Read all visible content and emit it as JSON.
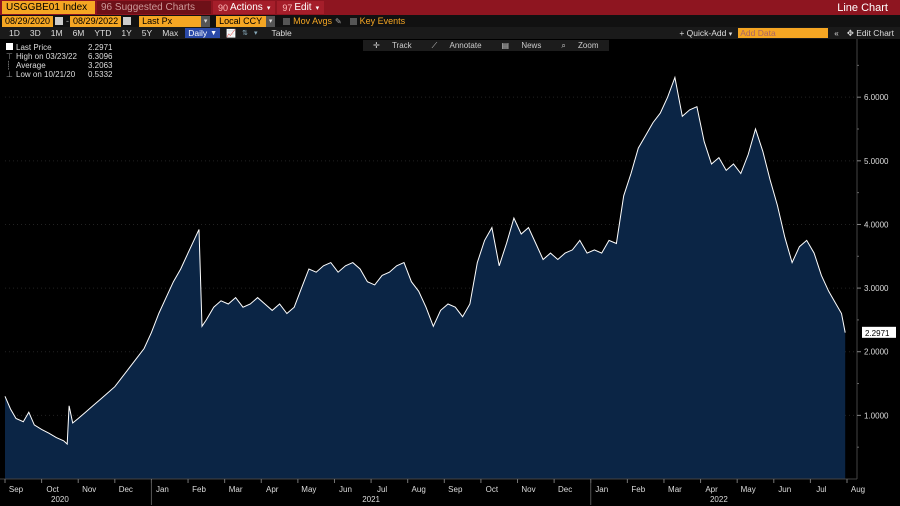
{
  "header": {
    "ticker": "USGGBE01 Index",
    "suggested": "96 Suggested Charts",
    "actions_num": "90",
    "actions_label": "Actions",
    "edit_num": "97",
    "edit_label": "Edit",
    "title": "Line Chart"
  },
  "controls": {
    "start_date": "08/29/2020",
    "end_date": "08/29/2022",
    "field": "Last Px",
    "currency": "Local CCY",
    "mov_avgs": "Mov Avgs",
    "key_events": "Key Events",
    "periods": [
      "1D",
      "3D",
      "1M",
      "6M",
      "YTD",
      "1Y",
      "5Y",
      "Max"
    ],
    "frequency": "Daily",
    "table": "Table",
    "quick_add": "Quick-Add",
    "add_data": "Add Data",
    "edit_chart": "Edit Chart"
  },
  "chart_toolbar": [
    "Track",
    "Annotate",
    "News",
    "Zoom"
  ],
  "legend": [
    {
      "label": "Last Price",
      "value": "2.2971"
    },
    {
      "label": "High on 03/23/22",
      "value": "6.3096"
    },
    {
      "label": "Average",
      "value": "3.2063"
    },
    {
      "label": "Low on 10/21/20",
      "value": "0.5332"
    }
  ],
  "colors": {
    "line": "#ffffff",
    "fill": "#0b2545",
    "background": "#000000"
  },
  "chart_data": {
    "type": "area",
    "title": "",
    "xlabel": "",
    "ylabel": "",
    "ylim": [
      0,
      6.6
    ],
    "y_ticks": [
      "1.0000",
      "2.0000",
      "3.0000",
      "4.0000",
      "5.0000",
      "6.0000"
    ],
    "y_tick_values": [
      1,
      2,
      3,
      4,
      5,
      6
    ],
    "last_label": "2.2971",
    "last_value": 2.2971,
    "x_months": [
      "Sep",
      "Oct",
      "Nov",
      "Dec",
      "Jan",
      "Feb",
      "Mar",
      "Apr",
      "May",
      "Jun",
      "Jul",
      "Aug",
      "Sep",
      "Oct",
      "Nov",
      "Dec",
      "Jan",
      "Feb",
      "Mar",
      "Apr",
      "May",
      "Jun",
      "Jul",
      "Aug"
    ],
    "x_years": [
      {
        "label": "2020",
        "month_index": 1.5
      },
      {
        "label": "2021",
        "month_index": 10
      },
      {
        "label": "2022",
        "month_index": 19.5
      }
    ],
    "x_month_positions": [
      0.3,
      1.3,
      2.3,
      3.3,
      4.3,
      5.3,
      6.3,
      7.3,
      8.3,
      9.3,
      10.3,
      11.3,
      12.3,
      13.3,
      14.3,
      15.3,
      16.3,
      17.3,
      18.3,
      19.3,
      20.3,
      21.3,
      22.3,
      23.3
    ],
    "series": [
      {
        "points": [
          [
            0.0,
            1.3
          ],
          [
            0.15,
            1.1
          ],
          [
            0.3,
            0.95
          ],
          [
            0.5,
            0.9
          ],
          [
            0.65,
            1.05
          ],
          [
            0.8,
            0.85
          ],
          [
            1.0,
            0.78
          ],
          [
            1.2,
            0.72
          ],
          [
            1.4,
            0.65
          ],
          [
            1.6,
            0.6
          ],
          [
            1.7,
            0.55
          ],
          [
            1.75,
            1.15
          ],
          [
            1.85,
            0.88
          ],
          [
            2.0,
            0.95
          ],
          [
            2.2,
            1.05
          ],
          [
            2.4,
            1.15
          ],
          [
            2.6,
            1.25
          ],
          [
            2.8,
            1.35
          ],
          [
            3.0,
            1.45
          ],
          [
            3.2,
            1.6
          ],
          [
            3.4,
            1.75
          ],
          [
            3.6,
            1.9
          ],
          [
            3.8,
            2.05
          ],
          [
            4.0,
            2.3
          ],
          [
            4.2,
            2.6
          ],
          [
            4.4,
            2.85
          ],
          [
            4.6,
            3.1
          ],
          [
            4.8,
            3.3
          ],
          [
            5.0,
            3.55
          ],
          [
            5.2,
            3.8
          ],
          [
            5.3,
            3.92
          ],
          [
            5.38,
            2.4
          ],
          [
            5.5,
            2.5
          ],
          [
            5.7,
            2.7
          ],
          [
            5.9,
            2.8
          ],
          [
            6.1,
            2.75
          ],
          [
            6.3,
            2.85
          ],
          [
            6.5,
            2.7
          ],
          [
            6.7,
            2.75
          ],
          [
            6.9,
            2.85
          ],
          [
            7.1,
            2.75
          ],
          [
            7.3,
            2.65
          ],
          [
            7.5,
            2.75
          ],
          [
            7.7,
            2.6
          ],
          [
            7.9,
            2.7
          ],
          [
            8.1,
            3.0
          ],
          [
            8.3,
            3.3
          ],
          [
            8.5,
            3.25
          ],
          [
            8.7,
            3.35
          ],
          [
            8.9,
            3.4
          ],
          [
            9.1,
            3.25
          ],
          [
            9.3,
            3.35
          ],
          [
            9.5,
            3.4
          ],
          [
            9.7,
            3.3
          ],
          [
            9.9,
            3.1
          ],
          [
            10.1,
            3.05
          ],
          [
            10.3,
            3.2
          ],
          [
            10.5,
            3.25
          ],
          [
            10.7,
            3.35
          ],
          [
            10.9,
            3.4
          ],
          [
            11.1,
            3.1
          ],
          [
            11.3,
            2.95
          ],
          [
            11.5,
            2.7
          ],
          [
            11.7,
            2.4
          ],
          [
            11.9,
            2.65
          ],
          [
            12.1,
            2.75
          ],
          [
            12.3,
            2.7
          ],
          [
            12.5,
            2.55
          ],
          [
            12.7,
            2.75
          ],
          [
            12.9,
            3.4
          ],
          [
            13.1,
            3.75
          ],
          [
            13.3,
            3.95
          ],
          [
            13.5,
            3.35
          ],
          [
            13.7,
            3.7
          ],
          [
            13.9,
            4.1
          ],
          [
            14.1,
            3.85
          ],
          [
            14.3,
            3.95
          ],
          [
            14.5,
            3.7
          ],
          [
            14.7,
            3.45
          ],
          [
            14.9,
            3.55
          ],
          [
            15.1,
            3.45
          ],
          [
            15.3,
            3.55
          ],
          [
            15.5,
            3.6
          ],
          [
            15.7,
            3.75
          ],
          [
            15.9,
            3.55
          ],
          [
            16.1,
            3.6
          ],
          [
            16.3,
            3.55
          ],
          [
            16.5,
            3.75
          ],
          [
            16.7,
            3.7
          ],
          [
            16.9,
            4.45
          ],
          [
            17.1,
            4.8
          ],
          [
            17.3,
            5.2
          ],
          [
            17.5,
            5.4
          ],
          [
            17.7,
            5.6
          ],
          [
            17.9,
            5.75
          ],
          [
            18.1,
            6.0
          ],
          [
            18.3,
            6.31
          ],
          [
            18.5,
            5.7
          ],
          [
            18.7,
            5.8
          ],
          [
            18.9,
            5.85
          ],
          [
            19.1,
            5.3
          ],
          [
            19.3,
            4.95
          ],
          [
            19.5,
            5.05
          ],
          [
            19.7,
            4.85
          ],
          [
            19.9,
            4.95
          ],
          [
            20.1,
            4.8
          ],
          [
            20.3,
            5.1
          ],
          [
            20.5,
            5.5
          ],
          [
            20.7,
            5.15
          ],
          [
            20.9,
            4.7
          ],
          [
            21.1,
            4.3
          ],
          [
            21.3,
            3.8
          ],
          [
            21.5,
            3.4
          ],
          [
            21.7,
            3.65
          ],
          [
            21.9,
            3.75
          ],
          [
            22.1,
            3.55
          ],
          [
            22.3,
            3.2
          ],
          [
            22.5,
            2.95
          ],
          [
            22.7,
            2.75
          ],
          [
            22.85,
            2.6
          ],
          [
            22.95,
            2.3
          ]
        ]
      }
    ]
  }
}
